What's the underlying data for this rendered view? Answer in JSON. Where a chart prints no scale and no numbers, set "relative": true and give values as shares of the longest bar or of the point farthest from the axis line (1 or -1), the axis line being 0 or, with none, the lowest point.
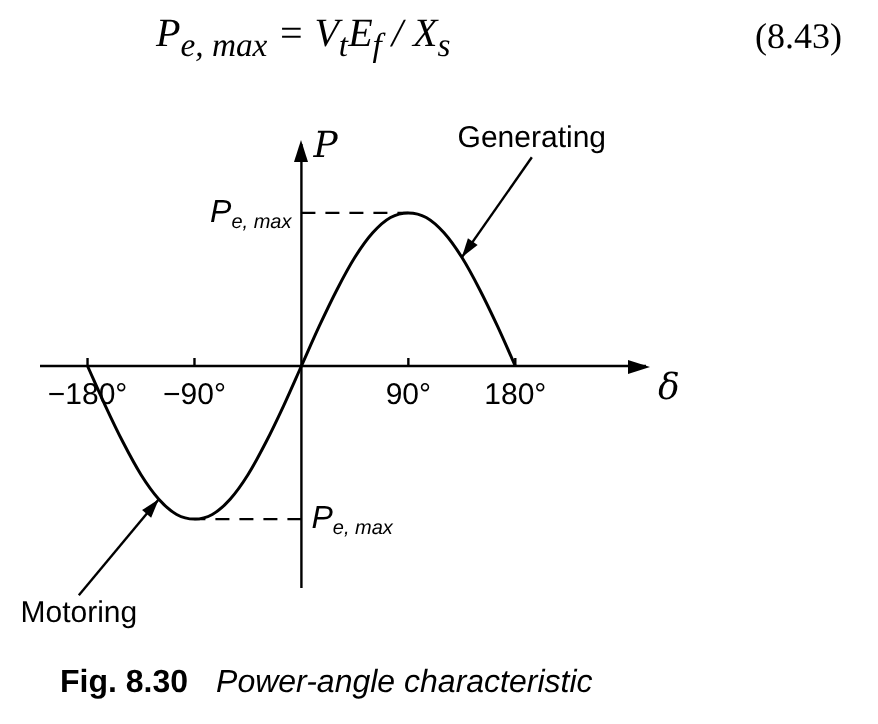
{
  "chart_data": {
    "type": "line",
    "relative": true,
    "xlabel": "δ",
    "ylabel": "P",
    "x": [
      -180,
      -165,
      -150,
      -135,
      -120,
      -105,
      -90,
      -75,
      -60,
      -45,
      -30,
      -15,
      0,
      15,
      30,
      45,
      60,
      75,
      90,
      105,
      120,
      135,
      150,
      165,
      180
    ],
    "values": [
      0,
      -0.26,
      -0.5,
      -0.71,
      -0.87,
      -0.97,
      -1,
      -0.97,
      -0.87,
      -0.71,
      -0.5,
      -0.26,
      0,
      0.26,
      0.5,
      0.71,
      0.87,
      0.97,
      1,
      0.97,
      0.87,
      0.71,
      0.5,
      0.26,
      0
    ],
    "color": "#000000",
    "marker": "none",
    "line_style": "solid",
    "xlim": [
      -220,
      290
    ],
    "xticks": [
      {
        "value": -180,
        "label": "−180°"
      },
      {
        "value": -90,
        "label": "−90°"
      },
      {
        "value": 90,
        "label": "90°"
      },
      {
        "value": 180,
        "label": "180°"
      }
    ],
    "ref_lines": [
      {
        "axis": "y",
        "value": 1,
        "label": "P$_{e, max}$",
        "line_style": "dashed"
      },
      {
        "axis": "y",
        "value": -1,
        "label": "P$_{e, max}$",
        "line_style": "dashed"
      }
    ],
    "annotations": [
      "P$_{e, max}$ = V$_{t}$E$_{f}$ / X$_{s}$",
      "(8.43)",
      {
        "text": "Generating",
        "x": 135,
        "y": 0.71
      },
      {
        "text": "Motoring",
        "x": -120,
        "y": -0.87
      },
      "Fig. 8.30",
      "Power-angle characteristic"
    ],
    "legend": false,
    "grid": false
  }
}
